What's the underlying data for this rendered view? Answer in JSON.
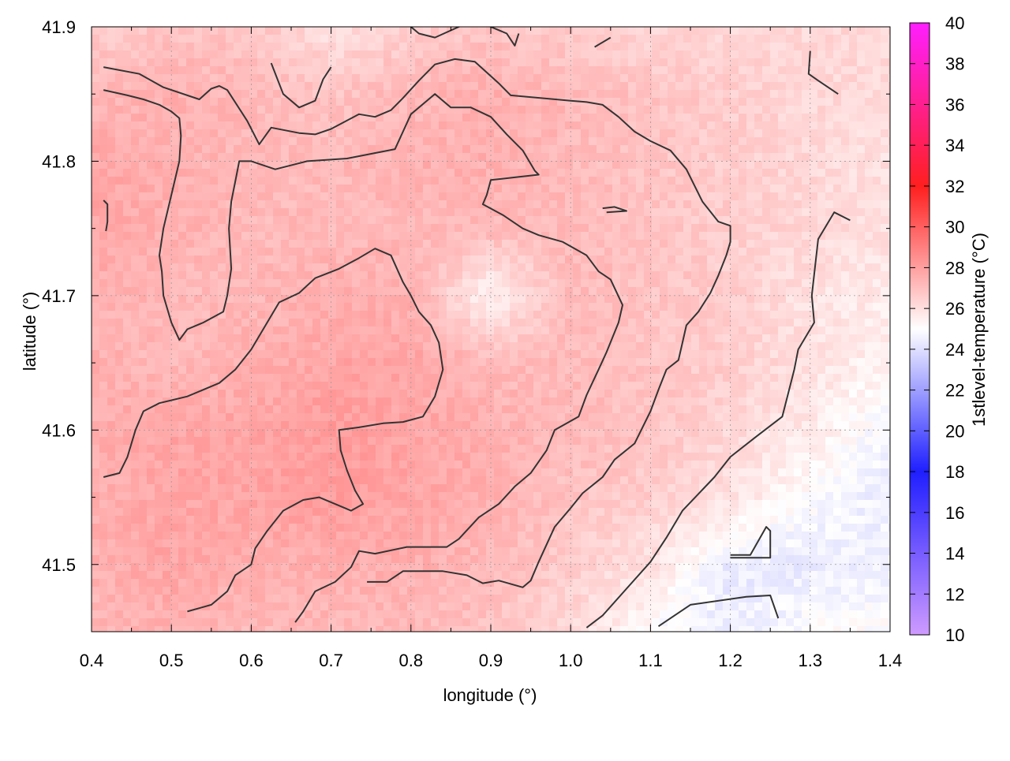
{
  "chart_data": {
    "type": "heatmap",
    "title": "",
    "xlabel": "longitude (°)",
    "ylabel": "latitude (°)",
    "colorbar_label": "1stlevel-temperature (°C)",
    "xlim": [
      0.4,
      1.4
    ],
    "ylim": [
      41.45,
      41.9
    ],
    "x_ticks": [
      "0.4",
      "0.5",
      "0.6",
      "0.7",
      "0.8",
      "0.9",
      "1.0",
      "1.1",
      "1.2",
      "1.3",
      "1.4"
    ],
    "y_ticks": [
      "41.5",
      "41.6",
      "41.7",
      "41.8",
      "41.9"
    ],
    "colorbar_range": [
      10,
      40
    ],
    "colorbar_ticks": [
      "10",
      "12",
      "14",
      "16",
      "18",
      "20",
      "22",
      "24",
      "26",
      "28",
      "30",
      "32",
      "34",
      "36",
      "38",
      "40"
    ],
    "colorscale": [
      {
        "value": 10,
        "color": "#c78cff"
      },
      {
        "value": 18,
        "color": "#0000ff"
      },
      {
        "value": 25,
        "color": "#ffffff"
      },
      {
        "value": 32,
        "color": "#ff0000"
      },
      {
        "value": 40,
        "color": "#ff00ff"
      }
    ],
    "grid": true,
    "contour_color": "#333333",
    "field": {
      "x": [
        0.4,
        0.5,
        0.6,
        0.7,
        0.8,
        0.9,
        1.0,
        1.1,
        1.2,
        1.3,
        1.4
      ],
      "y": [
        41.9,
        41.85,
        41.8,
        41.75,
        41.7,
        41.65,
        41.6,
        41.55,
        41.5,
        41.45
      ],
      "values": [
        [
          27.5,
          28.0,
          28.0,
          26.5,
          27.5,
          28.0,
          27.5,
          27.0,
          27.0,
          27.0,
          27.0
        ],
        [
          28.5,
          29.0,
          28.5,
          28.0,
          28.5,
          29.0,
          28.5,
          28.0,
          27.5,
          27.0,
          27.0
        ],
        [
          29.5,
          29.0,
          28.5,
          28.5,
          29.0,
          29.0,
          28.5,
          28.0,
          27.5,
          27.0,
          26.5
        ],
        [
          29.5,
          29.0,
          28.5,
          28.5,
          28.5,
          28.5,
          28.5,
          28.0,
          27.5,
          27.0,
          26.5
        ],
        [
          29.0,
          28.5,
          28.5,
          29.0,
          29.0,
          25.5,
          28.5,
          28.0,
          27.5,
          26.5,
          26.0
        ],
        [
          29.0,
          28.5,
          29.0,
          29.5,
          29.5,
          28.5,
          28.5,
          28.0,
          27.5,
          26.5,
          25.5
        ],
        [
          29.0,
          29.5,
          29.5,
          30.0,
          29.5,
          29.0,
          28.5,
          28.0,
          27.0,
          26.0,
          24.5
        ],
        [
          29.0,
          29.5,
          29.5,
          30.0,
          29.5,
          29.0,
          28.0,
          27.5,
          26.5,
          25.0,
          24.0
        ],
        [
          29.0,
          29.5,
          29.0,
          29.0,
          29.0,
          28.5,
          27.5,
          26.5,
          24.0,
          24.0,
          24.5
        ],
        [
          28.5,
          29.0,
          28.5,
          28.5,
          28.5,
          28.0,
          27.0,
          25.0,
          24.0,
          25.0,
          25.0
        ]
      ]
    },
    "contours": [
      [
        [
          0.415,
          41.87
        ],
        [
          0.46,
          41.865
        ],
        [
          0.49,
          41.855
        ],
        [
          0.535,
          41.846
        ],
        [
          0.55,
          41.854
        ],
        [
          0.56,
          41.856
        ],
        [
          0.57,
          41.853
        ],
        [
          0.595,
          41.83
        ],
        [
          0.61,
          41.8125
        ],
        [
          0.625,
          41.825
        ],
        [
          0.66,
          41.821
        ],
        [
          0.68,
          41.82
        ],
        [
          0.7,
          41.824
        ],
        [
          0.735,
          41.835
        ],
        [
          0.755,
          41.833
        ],
        [
          0.775,
          41.838
        ],
        [
          0.79,
          41.847
        ],
        [
          0.81,
          41.86
        ],
        [
          0.83,
          41.872
        ],
        [
          0.855,
          41.876
        ],
        [
          0.88,
          41.874
        ],
        [
          0.91,
          41.858
        ],
        [
          0.925,
          41.849
        ],
        [
          1.0,
          41.845
        ],
        [
          1.02,
          41.844
        ],
        [
          1.04,
          41.842
        ],
        [
          1.06,
          41.833
        ],
        [
          1.08,
          41.822
        ],
        [
          1.1,
          41.815
        ],
        [
          1.125,
          41.808
        ],
        [
          1.145,
          41.794
        ],
        [
          1.165,
          41.77
        ],
        [
          1.185,
          41.755
        ],
        [
          1.2,
          41.752
        ],
        [
          1.2,
          41.74
        ],
        [
          1.195,
          41.73
        ],
        [
          1.185,
          41.715
        ],
        [
          1.175,
          41.702
        ],
        [
          1.16,
          41.688
        ],
        [
          1.145,
          41.678
        ],
        [
          1.14,
          41.665
        ],
        [
          1.135,
          41.652
        ],
        [
          1.12,
          41.645
        ],
        [
          1.11,
          41.63
        ],
        [
          1.1,
          41.614
        ],
        [
          1.08,
          41.59
        ],
        [
          1.055,
          41.578
        ],
        [
          1.04,
          41.565
        ],
        [
          1.015,
          41.553
        ],
        [
          1.0,
          41.542
        ],
        [
          0.98,
          41.528
        ],
        [
          0.96,
          41.502
        ],
        [
          0.95,
          41.488
        ],
        [
          0.94,
          41.483
        ],
        [
          0.91,
          41.488
        ],
        [
          0.89,
          41.486
        ],
        [
          0.87,
          41.492
        ],
        [
          0.84,
          41.495
        ],
        [
          0.79,
          41.495
        ],
        [
          0.77,
          41.487
        ],
        [
          0.745,
          41.487
        ]
      ],
      [
        [
          0.415,
          41.853
        ],
        [
          0.445,
          41.849
        ],
        [
          0.465,
          41.846
        ],
        [
          0.485,
          41.842
        ],
        [
          0.5,
          41.837
        ],
        [
          0.51,
          41.832
        ],
        [
          0.512,
          41.819
        ],
        [
          0.51,
          41.8
        ],
        [
          0.5,
          41.775
        ],
        [
          0.49,
          41.75
        ],
        [
          0.485,
          41.73
        ],
        [
          0.488,
          41.718
        ],
        [
          0.49,
          41.7
        ],
        [
          0.5,
          41.68
        ],
        [
          0.51,
          41.667
        ],
        [
          0.52,
          41.675
        ],
        [
          0.54,
          41.68
        ],
        [
          0.565,
          41.688
        ],
        [
          0.57,
          41.7
        ],
        [
          0.575,
          41.72
        ],
        [
          0.572,
          41.75
        ],
        [
          0.575,
          41.77
        ],
        [
          0.58,
          41.785
        ],
        [
          0.585,
          41.8
        ],
        [
          0.6,
          41.8
        ],
        [
          0.63,
          41.794
        ],
        [
          0.67,
          41.8
        ],
        [
          0.72,
          41.802
        ],
        [
          0.78,
          41.809
        ],
        [
          0.8,
          41.835
        ],
        [
          0.83,
          41.85
        ],
        [
          0.85,
          41.84
        ],
        [
          0.875,
          41.84
        ],
        [
          0.9,
          41.833
        ],
        [
          0.92,
          41.82
        ],
        [
          0.94,
          41.808
        ],
        [
          0.955,
          41.793
        ],
        [
          0.96,
          41.79
        ],
        [
          0.93,
          41.788
        ],
        [
          0.9,
          41.786
        ],
        [
          0.895,
          41.775
        ],
        [
          0.89,
          41.768
        ],
        [
          0.915,
          41.76
        ],
        [
          0.94,
          41.75
        ],
        [
          0.96,
          41.745
        ],
        [
          0.99,
          41.74
        ],
        [
          1.02,
          41.73
        ],
        [
          1.035,
          41.718
        ],
        [
          1.05,
          41.712
        ],
        [
          1.065,
          41.693
        ],
        [
          1.06,
          41.68
        ],
        [
          1.045,
          41.658
        ],
        [
          1.035,
          41.645
        ],
        [
          1.02,
          41.626
        ],
        [
          1.01,
          41.61
        ],
        [
          0.98,
          41.6
        ],
        [
          0.97,
          41.585
        ],
        [
          0.95,
          41.568
        ],
        [
          0.93,
          41.558
        ],
        [
          0.91,
          41.545
        ],
        [
          0.885,
          41.535
        ],
        [
          0.86,
          41.519
        ],
        [
          0.845,
          41.513
        ],
        [
          0.795,
          41.513
        ],
        [
          0.755,
          41.508
        ],
        [
          0.735,
          41.51
        ],
        [
          0.725,
          41.498
        ],
        [
          0.705,
          41.487
        ],
        [
          0.68,
          41.48
        ],
        [
          0.665,
          41.465
        ],
        [
          0.655,
          41.457
        ]
      ],
      [
        [
          0.415,
          41.565
        ],
        [
          0.435,
          41.568
        ],
        [
          0.445,
          41.58
        ],
        [
          0.455,
          41.6
        ],
        [
          0.465,
          41.614
        ],
        [
          0.485,
          41.62
        ],
        [
          0.52,
          41.625
        ],
        [
          0.56,
          41.635
        ],
        [
          0.58,
          41.645
        ],
        [
          0.6,
          41.66
        ],
        [
          0.62,
          41.68
        ],
        [
          0.635,
          41.695
        ],
        [
          0.66,
          41.702
        ],
        [
          0.68,
          41.713
        ],
        [
          0.71,
          41.72
        ],
        [
          0.735,
          41.728
        ],
        [
          0.755,
          41.735
        ],
        [
          0.775,
          41.73
        ],
        [
          0.79,
          41.71
        ],
        [
          0.8,
          41.7
        ],
        [
          0.81,
          41.688
        ],
        [
          0.825,
          41.678
        ],
        [
          0.835,
          41.665
        ],
        [
          0.84,
          41.645
        ],
        [
          0.83,
          41.625
        ],
        [
          0.815,
          41.61
        ],
        [
          0.79,
          41.606
        ],
        [
          0.765,
          41.605
        ],
        [
          0.735,
          41.602
        ],
        [
          0.71,
          41.6
        ],
        [
          0.712,
          41.585
        ],
        [
          0.72,
          41.57
        ],
        [
          0.73,
          41.555
        ],
        [
          0.74,
          41.545
        ],
        [
          0.725,
          41.54
        ],
        [
          0.705,
          41.545
        ],
        [
          0.685,
          41.55
        ],
        [
          0.665,
          41.548
        ],
        [
          0.64,
          41.54
        ],
        [
          0.62,
          41.525
        ],
        [
          0.605,
          41.512
        ],
        [
          0.6,
          41.5
        ],
        [
          0.58,
          41.492
        ],
        [
          0.57,
          41.48
        ],
        [
          0.55,
          41.47
        ],
        [
          0.52,
          41.465
        ]
      ],
      [
        [
          0.625,
          41.873
        ],
        [
          0.64,
          41.85
        ],
        [
          0.66,
          41.84
        ],
        [
          0.68,
          41.845
        ],
        [
          0.69,
          41.861
        ],
        [
          0.7,
          41.87
        ]
      ],
      [
        [
          0.79,
          41.905
        ],
        [
          0.81,
          41.895
        ],
        [
          0.83,
          41.892
        ],
        [
          0.86,
          41.9
        ],
        [
          0.88,
          41.905
        ],
        [
          0.92,
          41.895
        ],
        [
          0.93,
          41.886
        ],
        [
          0.935,
          41.895
        ]
      ],
      [
        [
          1.03,
          41.885
        ],
        [
          1.05,
          41.892
        ]
      ],
      [
        [
          1.3,
          41.882
        ],
        [
          1.298,
          41.865
        ],
        [
          1.31,
          41.86
        ],
        [
          1.335,
          41.85
        ]
      ],
      [
        [
          1.35,
          41.756
        ],
        [
          1.33,
          41.762
        ],
        [
          1.31,
          41.742
        ],
        [
          1.302,
          41.7
        ],
        [
          1.305,
          41.68
        ],
        [
          1.285,
          41.66
        ],
        [
          1.28,
          41.645
        ],
        [
          1.265,
          41.61
        ],
        [
          1.232,
          41.595
        ],
        [
          1.2,
          41.58
        ],
        [
          1.18,
          41.565
        ],
        [
          1.14,
          41.54
        ],
        [
          1.12,
          41.52
        ],
        [
          1.1,
          41.502
        ],
        [
          1.07,
          41.482
        ],
        [
          1.04,
          41.462
        ],
        [
          1.02,
          41.453
        ]
      ],
      [
        [
          1.2,
          41.507
        ],
        [
          1.225,
          41.507
        ],
        [
          1.245,
          41.528
        ],
        [
          1.25,
          41.525
        ],
        [
          1.25,
          41.505
        ],
        [
          1.2,
          41.505
        ]
      ],
      [
        [
          1.11,
          41.454
        ],
        [
          1.15,
          41.47
        ],
        [
          1.22,
          41.476
        ],
        [
          1.25,
          41.477
        ],
        [
          1.26,
          41.46
        ]
      ],
      [
        [
          1.04,
          41.765
        ],
        [
          1.055,
          41.766
        ],
        [
          1.07,
          41.763
        ],
        [
          1.045,
          41.762
        ]
      ],
      [
        [
          0.415,
          41.771
        ],
        [
          0.42,
          41.768
        ],
        [
          0.42,
          41.755
        ],
        [
          0.418,
          41.748
        ]
      ]
    ]
  }
}
